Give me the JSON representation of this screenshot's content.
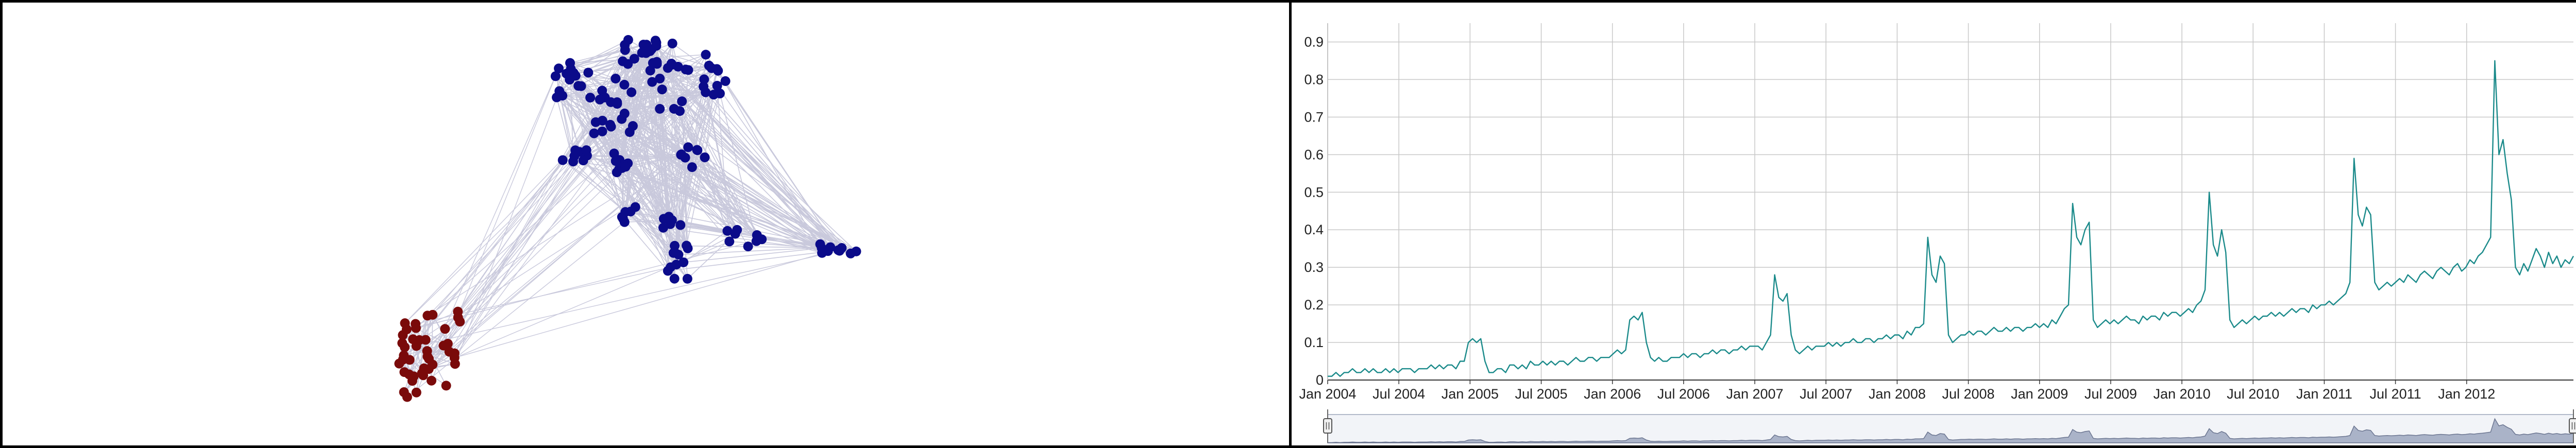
{
  "network": {
    "clusters": [
      {
        "name": "blue-cluster",
        "color": "#0b0b8a",
        "node_count": 146
      },
      {
        "name": "red-cluster",
        "color": "#7a0a0a",
        "node_count": 44
      }
    ],
    "edge_color": "#c9c9dc",
    "node_radius_hint": "small"
  },
  "chart_data": {
    "type": "line",
    "title": "",
    "xlabel": "",
    "ylabel": "",
    "ylim": [
      0,
      0.95
    ],
    "yticks": [
      "0",
      "0.1",
      "0.2",
      "0.3",
      "0.4",
      "0.5",
      "0.6",
      "0.7",
      "0.8",
      "0.9"
    ],
    "xticks": [
      "Jan 2004",
      "Jul 2004",
      "Jan 2005",
      "Jul 2005",
      "Jan 2006",
      "Jul 2006",
      "Jan 2007",
      "Jul 2007",
      "Jan 2008",
      "Jul 2008",
      "Jan 2009",
      "Jul 2009",
      "Jan 2010",
      "Jul 2010",
      "Jan 2011",
      "Jul 2011",
      "Jan 2012"
    ],
    "x_start": "Jan 2004",
    "x_end": "Oct 2012",
    "grid": true,
    "line_color": "#1a8a8a",
    "navigator": {
      "visible": true,
      "fill": "#aab3c8"
    },
    "series": [
      {
        "values": [
          0.01,
          0.01,
          0.02,
          0.01,
          0.02,
          0.02,
          0.03,
          0.02,
          0.02,
          0.03,
          0.02,
          0.03,
          0.02,
          0.02,
          0.03,
          0.02,
          0.03,
          0.02,
          0.03,
          0.03,
          0.03,
          0.02,
          0.03,
          0.03,
          0.03,
          0.04,
          0.03,
          0.04,
          0.03,
          0.04,
          0.04,
          0.03,
          0.05,
          0.05,
          0.1,
          0.11,
          0.1,
          0.11,
          0.05,
          0.02,
          0.02,
          0.03,
          0.03,
          0.02,
          0.04,
          0.04,
          0.03,
          0.04,
          0.03,
          0.05,
          0.04,
          0.04,
          0.05,
          0.04,
          0.05,
          0.04,
          0.05,
          0.05,
          0.04,
          0.05,
          0.06,
          0.05,
          0.05,
          0.06,
          0.06,
          0.05,
          0.06,
          0.06,
          0.06,
          0.07,
          0.08,
          0.07,
          0.08,
          0.16,
          0.17,
          0.16,
          0.18,
          0.1,
          0.06,
          0.05,
          0.06,
          0.05,
          0.05,
          0.06,
          0.06,
          0.06,
          0.07,
          0.06,
          0.07,
          0.07,
          0.06,
          0.07,
          0.07,
          0.08,
          0.07,
          0.08,
          0.08,
          0.07,
          0.08,
          0.08,
          0.09,
          0.08,
          0.09,
          0.09,
          0.09,
          0.08,
          0.1,
          0.12,
          0.28,
          0.22,
          0.21,
          0.23,
          0.12,
          0.08,
          0.07,
          0.08,
          0.09,
          0.08,
          0.09,
          0.09,
          0.09,
          0.1,
          0.09,
          0.1,
          0.09,
          0.1,
          0.1,
          0.11,
          0.1,
          0.1,
          0.11,
          0.11,
          0.1,
          0.11,
          0.11,
          0.12,
          0.11,
          0.12,
          0.12,
          0.11,
          0.13,
          0.12,
          0.14,
          0.14,
          0.15,
          0.38,
          0.28,
          0.26,
          0.33,
          0.31,
          0.12,
          0.1,
          0.11,
          0.12,
          0.12,
          0.13,
          0.12,
          0.13,
          0.13,
          0.12,
          0.13,
          0.14,
          0.13,
          0.13,
          0.14,
          0.13,
          0.14,
          0.14,
          0.13,
          0.14,
          0.14,
          0.15,
          0.14,
          0.15,
          0.14,
          0.16,
          0.15,
          0.17,
          0.19,
          0.2,
          0.47,
          0.38,
          0.36,
          0.4,
          0.42,
          0.16,
          0.14,
          0.15,
          0.16,
          0.15,
          0.16,
          0.15,
          0.16,
          0.17,
          0.16,
          0.16,
          0.15,
          0.17,
          0.16,
          0.17,
          0.17,
          0.16,
          0.18,
          0.17,
          0.18,
          0.18,
          0.17,
          0.18,
          0.19,
          0.18,
          0.2,
          0.21,
          0.24,
          0.5,
          0.36,
          0.33,
          0.4,
          0.34,
          0.16,
          0.14,
          0.15,
          0.16,
          0.15,
          0.16,
          0.17,
          0.16,
          0.17,
          0.17,
          0.18,
          0.17,
          0.18,
          0.17,
          0.18,
          0.19,
          0.18,
          0.19,
          0.19,
          0.18,
          0.2,
          0.19,
          0.2,
          0.2,
          0.21,
          0.2,
          0.21,
          0.22,
          0.23,
          0.26,
          0.59,
          0.44,
          0.41,
          0.46,
          0.44,
          0.26,
          0.24,
          0.25,
          0.26,
          0.25,
          0.26,
          0.27,
          0.26,
          0.28,
          0.27,
          0.26,
          0.28,
          0.29,
          0.28,
          0.27,
          0.29,
          0.3,
          0.29,
          0.28,
          0.3,
          0.31,
          0.29,
          0.3,
          0.32,
          0.31,
          0.33,
          0.34,
          0.36,
          0.38,
          0.85,
          0.6,
          0.64,
          0.55,
          0.48,
          0.3,
          0.28,
          0.31,
          0.29,
          0.32,
          0.35,
          0.33,
          0.3,
          0.34,
          0.31,
          0.33,
          0.3,
          0.32,
          0.31,
          0.33
        ]
      }
    ]
  }
}
